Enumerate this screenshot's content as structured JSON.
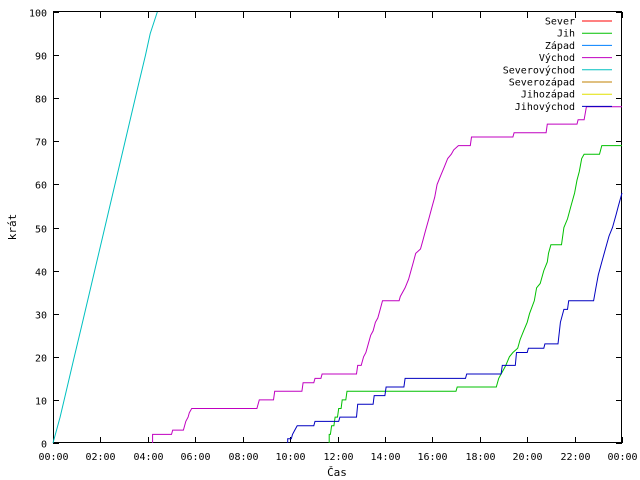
{
  "chart_data": {
    "type": "line",
    "xlabel": "Čas",
    "ylabel": "krát",
    "xlim": [
      0,
      24
    ],
    "ylim": [
      0,
      100
    ],
    "x_ticks": [
      {
        "value": 0,
        "label": "00:00"
      },
      {
        "value": 2,
        "label": "02:00"
      },
      {
        "value": 4,
        "label": "04:00"
      },
      {
        "value": 6,
        "label": "06:00"
      },
      {
        "value": 8,
        "label": "08:00"
      },
      {
        "value": 10,
        "label": "10:00"
      },
      {
        "value": 12,
        "label": "12:00"
      },
      {
        "value": 14,
        "label": "14:00"
      },
      {
        "value": 16,
        "label": "16:00"
      },
      {
        "value": 18,
        "label": "18:00"
      },
      {
        "value": 20,
        "label": "20:00"
      },
      {
        "value": 22,
        "label": "22:00"
      },
      {
        "value": 24,
        "label": "00:00"
      }
    ],
    "y_ticks": [
      0,
      10,
      20,
      30,
      40,
      50,
      60,
      70,
      80,
      90,
      100
    ],
    "grid": false,
    "legend_position": "top-right",
    "series": [
      {
        "name": "Sever",
        "color": "#ff0000",
        "points": []
      },
      {
        "name": "Jih",
        "color": "#00c000",
        "points": [
          [
            11.65,
            0
          ],
          [
            11.65,
            2
          ],
          [
            11.7,
            2
          ],
          [
            11.75,
            4
          ],
          [
            11.85,
            4
          ],
          [
            11.9,
            6
          ],
          [
            12.0,
            6
          ],
          [
            12.05,
            8
          ],
          [
            12.15,
            8
          ],
          [
            12.2,
            10
          ],
          [
            12.35,
            10
          ],
          [
            12.4,
            12
          ],
          [
            17.0,
            12
          ],
          [
            17.05,
            13
          ],
          [
            18.7,
            13
          ],
          [
            18.8,
            15
          ],
          [
            18.9,
            16
          ],
          [
            19.0,
            17
          ],
          [
            19.1,
            18
          ],
          [
            19.25,
            20
          ],
          [
            19.4,
            21
          ],
          [
            19.6,
            22
          ],
          [
            19.7,
            24
          ],
          [
            19.85,
            26
          ],
          [
            20.0,
            28
          ],
          [
            20.1,
            30
          ],
          [
            20.3,
            33
          ],
          [
            20.4,
            36
          ],
          [
            20.55,
            37
          ],
          [
            20.7,
            40
          ],
          [
            20.85,
            42
          ],
          [
            20.9,
            44
          ],
          [
            21.0,
            46
          ],
          [
            21.45,
            46
          ],
          [
            21.55,
            50
          ],
          [
            21.7,
            52
          ],
          [
            21.85,
            55
          ],
          [
            22.0,
            58
          ],
          [
            22.1,
            61
          ],
          [
            22.2,
            63
          ],
          [
            22.3,
            66
          ],
          [
            22.4,
            67
          ],
          [
            23.05,
            67
          ],
          [
            23.15,
            69
          ],
          [
            24.0,
            69
          ]
        ]
      },
      {
        "name": "Západ",
        "color": "#0080ff",
        "points": []
      },
      {
        "name": "Východ",
        "color": "#c000c0",
        "points": [
          [
            4.2,
            0
          ],
          [
            4.2,
            2
          ],
          [
            5.0,
            2
          ],
          [
            5.05,
            3
          ],
          [
            5.5,
            3
          ],
          [
            5.6,
            5
          ],
          [
            5.7,
            6
          ],
          [
            5.75,
            7
          ],
          [
            5.85,
            8
          ],
          [
            8.6,
            8
          ],
          [
            8.7,
            10
          ],
          [
            9.3,
            10
          ],
          [
            9.35,
            12
          ],
          [
            10.5,
            12
          ],
          [
            10.55,
            14
          ],
          [
            11.0,
            14
          ],
          [
            11.05,
            15
          ],
          [
            11.3,
            15
          ],
          [
            11.35,
            16
          ],
          [
            12.8,
            16
          ],
          [
            12.85,
            18
          ],
          [
            13.0,
            18
          ],
          [
            13.1,
            20
          ],
          [
            13.2,
            21
          ],
          [
            13.3,
            23
          ],
          [
            13.4,
            25
          ],
          [
            13.5,
            26
          ],
          [
            13.6,
            28
          ],
          [
            13.7,
            29
          ],
          [
            13.8,
            31
          ],
          [
            13.9,
            33
          ],
          [
            14.6,
            33
          ],
          [
            14.65,
            34
          ],
          [
            14.85,
            36
          ],
          [
            15.0,
            38
          ],
          [
            15.1,
            40
          ],
          [
            15.2,
            42
          ],
          [
            15.3,
            44
          ],
          [
            15.5,
            45
          ],
          [
            15.6,
            47
          ],
          [
            15.7,
            49
          ],
          [
            15.85,
            52
          ],
          [
            16.0,
            55
          ],
          [
            16.1,
            57
          ],
          [
            16.2,
            60
          ],
          [
            16.35,
            62
          ],
          [
            16.5,
            64
          ],
          [
            16.65,
            66
          ],
          [
            16.8,
            67
          ],
          [
            16.9,
            68
          ],
          [
            17.1,
            69
          ],
          [
            17.6,
            69
          ],
          [
            17.65,
            71
          ],
          [
            19.4,
            71
          ],
          [
            19.45,
            72
          ],
          [
            20.8,
            72
          ],
          [
            20.85,
            74
          ],
          [
            22.1,
            74
          ],
          [
            22.15,
            75
          ],
          [
            22.4,
            75
          ],
          [
            22.5,
            78
          ],
          [
            24.0,
            78
          ]
        ]
      },
      {
        "name": "Severovýchod",
        "color": "#00c0c0",
        "points": [
          [
            0.0,
            0
          ],
          [
            0.3,
            6
          ],
          [
            0.6,
            13
          ],
          [
            0.9,
            20
          ],
          [
            1.2,
            27
          ],
          [
            1.5,
            34
          ],
          [
            1.8,
            41
          ],
          [
            2.1,
            48
          ],
          [
            2.4,
            55
          ],
          [
            2.7,
            62
          ],
          [
            3.0,
            69
          ],
          [
            3.3,
            76
          ],
          [
            3.6,
            83
          ],
          [
            3.9,
            90
          ],
          [
            4.1,
            95
          ],
          [
            4.4,
            100
          ]
        ]
      },
      {
        "name": "Severozápad",
        "color": "#c08000",
        "points": []
      },
      {
        "name": "Jihozápad",
        "color": "#e0e000",
        "points": []
      },
      {
        "name": "Jihovýchod",
        "color": "#0000c0",
        "points": [
          [
            9.9,
            0
          ],
          [
            9.9,
            1
          ],
          [
            10.05,
            1
          ],
          [
            10.1,
            2
          ],
          [
            10.2,
            3
          ],
          [
            10.3,
            4
          ],
          [
            11.0,
            4
          ],
          [
            11.05,
            5
          ],
          [
            12.05,
            5
          ],
          [
            12.1,
            6
          ],
          [
            12.8,
            6
          ],
          [
            12.85,
            9
          ],
          [
            13.5,
            9
          ],
          [
            13.55,
            11
          ],
          [
            14.0,
            11
          ],
          [
            14.05,
            13
          ],
          [
            14.8,
            13
          ],
          [
            14.85,
            15
          ],
          [
            17.4,
            15
          ],
          [
            17.45,
            16
          ],
          [
            18.9,
            16
          ],
          [
            18.95,
            18
          ],
          [
            19.5,
            18
          ],
          [
            19.55,
            21
          ],
          [
            20.0,
            21
          ],
          [
            20.05,
            22
          ],
          [
            20.7,
            22
          ],
          [
            20.75,
            23
          ],
          [
            21.3,
            23
          ],
          [
            21.4,
            28
          ],
          [
            21.55,
            31
          ],
          [
            21.7,
            31
          ],
          [
            21.75,
            33
          ],
          [
            22.8,
            33
          ],
          [
            22.9,
            36
          ],
          [
            23.0,
            39
          ],
          [
            23.15,
            42
          ],
          [
            23.3,
            45
          ],
          [
            23.45,
            48
          ],
          [
            23.6,
            50
          ],
          [
            23.75,
            53
          ],
          [
            23.85,
            55
          ],
          [
            24.0,
            58
          ]
        ]
      }
    ]
  }
}
